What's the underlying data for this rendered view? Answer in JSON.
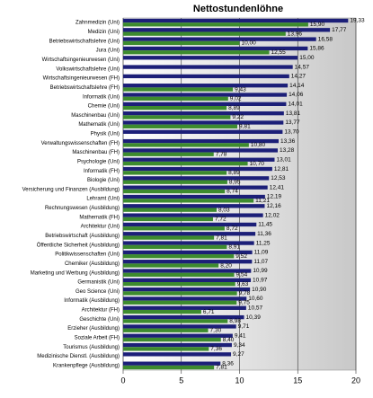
{
  "chart_data": {
    "type": "hbar",
    "title": "Nettostundenlöhne",
    "categories": [
      "Zahnmedizin (Uni)",
      "Medizin (Uni)",
      "Betriebswirtschaftslehre (Uni)",
      "Jura (Uni)",
      "Wirtschaftsingenieurwesen (Uni)",
      "Volkswirtschaftslehre (Uni)",
      "Wirtschaftsingenieurwesen (FH)",
      "Betriebswirtschaftslehre (FH)",
      "Informatik (Uni)",
      "Chemie (Uni)",
      "Maschinenbau (Uni)",
      "Mathematik (Uni)",
      "Physik (Uni)",
      "Verwaltungswissenschaften (FH)",
      "Maschinenbau (FH)",
      "Psychologie (Uni)",
      "Informatik (FH)",
      "Biologie (Uni)",
      "Versicherung und Finanzen (Ausbildung)",
      "Lehramt (Uni)",
      "Rechnungswesen (Ausbildung)",
      "Mathematik (FH)",
      "Architektur (Uni)",
      "Betriebswirtschaft (Ausbildung)",
      "Öffentliche Sicherheit (Ausbildung)",
      "Politikwissenschaften (Uni)",
      "Chemiker (Ausbildung)",
      "Marketing und Werbung (Ausbildung)",
      "Germanistik (Uni)",
      "Geo Science (Uni)",
      "Informatik (Ausbildung)",
      "Architektur (FH)",
      "Geschichte (Uni)",
      "Erzieher (Ausbildung)",
      "Soziale Arbeit (FH)",
      "Tourismus (Ausbildung)",
      "Medizinische Dienstl. (Ausbildung)",
      "Krankenpflege (Ausbildung)"
    ],
    "series": [
      {
        "color": "#1c1f78",
        "values": [
          19.33,
          17.77,
          16.58,
          15.86,
          15.0,
          14.57,
          14.27,
          14.14,
          14.06,
          14.01,
          13.81,
          13.77,
          13.7,
          13.36,
          13.28,
          13.01,
          12.81,
          12.53,
          12.41,
          12.19,
          12.16,
          12.02,
          11.45,
          11.36,
          11.25,
          11.09,
          11.07,
          10.99,
          10.97,
          10.9,
          10.6,
          10.57,
          10.39,
          9.71,
          9.41,
          9.34,
          9.27,
          8.36
        ],
        "value_labels": [
          "19,33",
          "17,77",
          "16,58",
          "15,86",
          "15,00",
          "14,57",
          "14,27",
          "14,14",
          "14,06",
          "14,01",
          "13,81",
          "13,77",
          "13,70",
          "13,36",
          "13,28",
          "13,01",
          "12,81",
          "12,53",
          "12,41",
          "12,19",
          "12,16",
          "12,02",
          "11,45",
          "11,36",
          "11,25",
          "11,09",
          "11,07",
          "10,99",
          "10,97",
          "10,90",
          "10,60",
          "10,57",
          "10,39",
          "9,71",
          "9,41",
          "9,34",
          "9,27",
          "8,36"
        ]
      },
      {
        "color": "#3d8b2e",
        "values": [
          15.9,
          13.96,
          10.0,
          12.55,
          null,
          null,
          null,
          9.43,
          9.02,
          8.89,
          9.22,
          9.81,
          null,
          10.8,
          7.78,
          10.7,
          8.89,
          8.95,
          8.74,
          11.21,
          8.03,
          7.72,
          8.72,
          7.81,
          8.91,
          9.52,
          8.2,
          9.54,
          9.63,
          9.78,
          9.75,
          6.71,
          8.98,
          7.3,
          8.4,
          7.36,
          null,
          7.81
        ],
        "value_labels": [
          "15,90",
          "13,96",
          "10,00",
          "12,55",
          null,
          null,
          null,
          "9,43",
          "9,02",
          "8,89",
          "9,22",
          "9,81",
          null,
          "10,80",
          "7,78",
          "10,70",
          "8,89",
          "8,95",
          "8,74",
          "11,21",
          "8,03",
          "7,72",
          "8,72",
          "7,81",
          "8,91",
          "9,52",
          "8,20",
          "9,54",
          "9,63",
          "9,78",
          "9,75",
          "6,71",
          "8,98",
          "7,30",
          "8,40",
          "7,36",
          null,
          "7,81"
        ]
      }
    ],
    "xlim": [
      0,
      20
    ],
    "xticks": [
      0,
      5,
      10,
      15,
      20
    ],
    "grid": true
  }
}
